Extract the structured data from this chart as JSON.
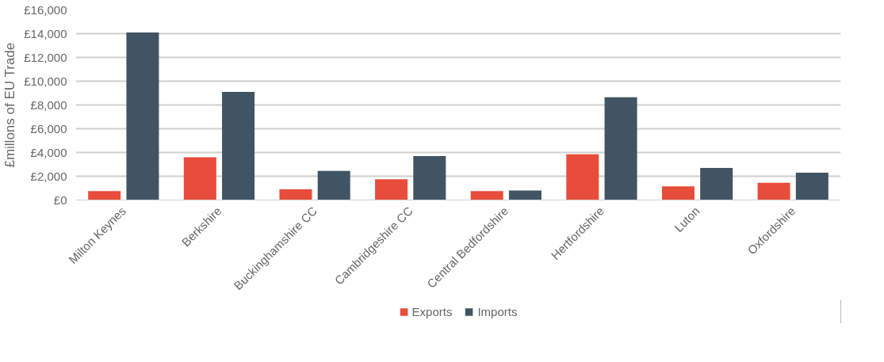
{
  "chart_data": {
    "type": "bar",
    "ylabel": "£millons of EU Trade",
    "categories": [
      "Milton Keynes",
      "Berkshire",
      "Buckinghamshire CC",
      "Cambridgeshire CC",
      "Central Bedfordshire",
      "Hertfordshire",
      "Luton",
      "Oxfordshire"
    ],
    "series": [
      {
        "name": "Exports",
        "color": "#e84c3a",
        "values": [
          750,
          3600,
          900,
          1750,
          750,
          3850,
          1150,
          1450
        ]
      },
      {
        "name": "Imports",
        "color": "#415463",
        "values": [
          14100,
          9100,
          2450,
          3700,
          800,
          8650,
          2700,
          2300
        ]
      }
    ],
    "ylim": [
      0,
      16000
    ],
    "yticks": [
      {
        "value": 0,
        "label": "£0"
      },
      {
        "value": 2000,
        "label": "£2,000"
      },
      {
        "value": 4000,
        "label": "£4,000"
      },
      {
        "value": 6000,
        "label": "£6,000"
      },
      {
        "value": 8000,
        "label": "£8,000"
      },
      {
        "value": 10000,
        "label": "£10,000"
      },
      {
        "value": 12000,
        "label": "£12,000"
      },
      {
        "value": 14000,
        "label": "£14,000"
      },
      {
        "value": 16000,
        "label": "£16,000"
      }
    ],
    "grid": "y",
    "legend": "bottom"
  }
}
